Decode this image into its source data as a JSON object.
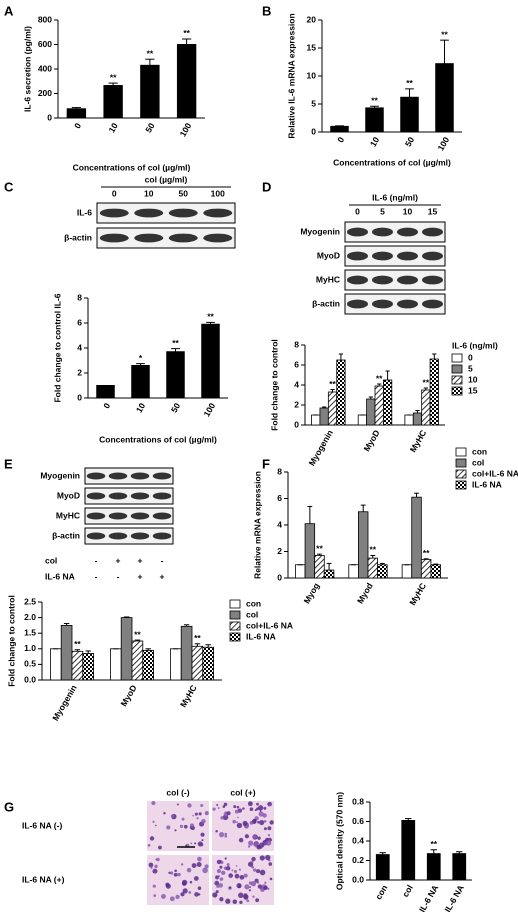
{
  "chart_data": [
    {
      "type": "bar",
      "panel": "A",
      "ylabel": "IL-6 secretion (pg/ml)",
      "xlabel": "Concentrations of col (µg/ml)",
      "categories": [
        "0",
        "10",
        "50",
        "100"
      ],
      "values": [
        75,
        265,
        430,
        600
      ],
      "errors": [
        10,
        20,
        50,
        45
      ],
      "significance": [
        null,
        "**",
        "**",
        "**"
      ],
      "color": "#000000",
      "ylim": [
        0,
        800
      ],
      "yticks": [
        0,
        200,
        400,
        600,
        800
      ]
    },
    {
      "type": "bar",
      "panel": "B",
      "ylabel": "Relative IL-6 mRNA expression",
      "xlabel": "Concentrations of col (µg/ml)",
      "categories": [
        "0",
        "10",
        "50",
        "100"
      ],
      "values": [
        1,
        4.3,
        6.2,
        12.2
      ],
      "errors": [
        0.1,
        0.3,
        1.5,
        4.2
      ],
      "significance": [
        null,
        "**",
        "**",
        "**"
      ],
      "color": "#000000",
      "ylim": [
        0,
        20
      ],
      "yticks": [
        0,
        5,
        10,
        15,
        20
      ]
    },
    {
      "type": "bar",
      "panel": "C",
      "ylabel": "Fold change to control IL-6",
      "xlabel": "Concentrations of col (µg/ml)",
      "categories": [
        "0",
        "10",
        "50",
        "100"
      ],
      "values": [
        1,
        2.6,
        3.7,
        5.9
      ],
      "errors": [
        0,
        0.15,
        0.25,
        0.15
      ],
      "significance": [
        null,
        "*",
        "**",
        "**"
      ],
      "color": "#000000",
      "ylim": [
        0,
        8
      ],
      "yticks": [
        0,
        2,
        4,
        6,
        8
      ]
    },
    {
      "type": "grouped-bar",
      "panel": "D",
      "ylabel": "Fold change to control",
      "legend_title": "IL-6 (ng/ml)",
      "categories": [
        "Myogenin",
        "MyoD",
        "MyHC"
      ],
      "ylim": [
        0,
        8
      ],
      "yticks": [
        0,
        2,
        4,
        6,
        8
      ],
      "series": [
        {
          "name": "0",
          "color": "#ffffff",
          "values": [
            1,
            1,
            1
          ],
          "errors": [
            0,
            0,
            0
          ],
          "significance": [
            null,
            null,
            null
          ]
        },
        {
          "name": "5",
          "color": "#808080",
          "values": [
            1.7,
            2.6,
            1.2
          ],
          "errors": [
            0.1,
            0.2,
            0.25
          ],
          "significance": [
            null,
            null,
            null
          ]
        },
        {
          "name": "10",
          "color": "#ffffff",
          "pattern": "hatch",
          "values": [
            3.3,
            3.9,
            3.5
          ],
          "errors": [
            0.25,
            0.2,
            0.2
          ],
          "significance": [
            "**",
            "**",
            "**"
          ]
        },
        {
          "name": "15",
          "color": "#ffffff",
          "pattern": "check",
          "values": [
            6.5,
            4.5,
            6.6
          ],
          "errors": [
            0.6,
            0.9,
            0.5
          ],
          "significance": [
            null,
            null,
            null
          ]
        }
      ]
    },
    {
      "type": "grouped-bar",
      "panel": "E",
      "ylabel": "Fold change to control",
      "categories": [
        "Myogenin",
        "MyoD",
        "MyHC"
      ],
      "ylim": [
        0,
        2.5
      ],
      "yticks": [
        {
          "value": 0,
          "label": "0.0"
        },
        0.5,
        {
          "value": 1,
          "label": "1.0"
        },
        1.5,
        {
          "value": 2,
          "label": "2.0"
        },
        2.5
      ],
      "series": [
        {
          "name": "con",
          "color": "#ffffff",
          "values": [
            1,
            1,
            1
          ],
          "errors": [
            0,
            0,
            0
          ],
          "significance": [
            null,
            null,
            null
          ]
        },
        {
          "name": "col",
          "color": "#808080",
          "values": [
            1.75,
            2.0,
            1.72
          ],
          "errors": [
            0.06,
            0.02,
            0.05
          ],
          "significance": [
            null,
            null,
            null
          ]
        },
        {
          "name": "col+IL-6 NA",
          "color": "#ffffff",
          "pattern": "hatch",
          "values": [
            0.92,
            1.25,
            1.08
          ],
          "errors": [
            0.05,
            0.03,
            0.08
          ],
          "significance": [
            "**",
            "**",
            "**"
          ]
        },
        {
          "name": "IL-6 NA",
          "color": "#ffffff",
          "pattern": "check",
          "values": [
            0.85,
            0.95,
            1.05
          ],
          "errors": [
            0.08,
            0.05,
            0.08
          ],
          "significance": [
            null,
            null,
            null
          ]
        }
      ]
    },
    {
      "type": "grouped-bar",
      "panel": "F",
      "ylabel": "Relative mRNA expression",
      "categories": [
        "Myog",
        "Myod",
        "MyHC"
      ],
      "ylim": [
        0,
        8
      ],
      "yticks": [
        0,
        2,
        4,
        6,
        8
      ],
      "series": [
        {
          "name": "con",
          "color": "#ffffff",
          "values": [
            1,
            1,
            1
          ],
          "errors": [
            0,
            0,
            0
          ],
          "significance": [
            null,
            null,
            null
          ]
        },
        {
          "name": "col",
          "color": "#808080",
          "values": [
            4.1,
            5.0,
            6.1
          ],
          "errors": [
            1.3,
            0.5,
            0.3
          ],
          "significance": [
            null,
            null,
            null
          ]
        },
        {
          "name": "col+IL-6 NA",
          "color": "#ffffff",
          "pattern": "hatch",
          "values": [
            1.7,
            1.5,
            1.4
          ],
          "errors": [
            0.1,
            0.2,
            0.05
          ],
          "significance": [
            "**",
            "**",
            "**"
          ]
        },
        {
          "name": "IL-6 NA",
          "color": "#ffffff",
          "pattern": "check",
          "values": [
            0.6,
            1.0,
            1.0
          ],
          "errors": [
            0.5,
            0.1,
            0.05
          ],
          "significance": [
            null,
            null,
            null
          ]
        }
      ]
    },
    {
      "type": "bar",
      "panel": "G",
      "ylabel": "Optical density (570 nm)",
      "categories": [
        "con",
        "col",
        "col+IL-6 NA",
        "IL-6 NA"
      ],
      "values": [
        0.26,
        0.61,
        0.27,
        0.27
      ],
      "errors": [
        0.02,
        0.02,
        0.04,
        0.02
      ],
      "significance": [
        null,
        null,
        "**",
        null
      ],
      "color": "#000000",
      "ylim": [
        0,
        0.8
      ],
      "yticks": [
        {
          "value": 0,
          "label": "0.0"
        },
        0.2,
        0.4,
        0.6,
        0.8
      ]
    }
  ],
  "blots": [
    {
      "header": "col (µg/ml)",
      "lanes": [
        "0",
        "10",
        "50",
        "100"
      ],
      "rows": [
        "IL-6",
        "β-actin"
      ]
    },
    {
      "header": "IL-6 (ng/ml)",
      "lanes": [
        "0",
        "5",
        "10",
        "15"
      ],
      "rows": [
        "Myogenin",
        "MyoD",
        "MyHC",
        "β-actin"
      ]
    },
    {
      "rows": [
        "Myogenin",
        "MyoD",
        "MyHC",
        "β-actin"
      ],
      "treatments": [
        {
          "name": "col",
          "signs": [
            "-",
            "+",
            "+",
            "-"
          ]
        },
        {
          "name": "IL-6 NA",
          "signs": [
            "-",
            "-",
            "+",
            "+"
          ]
        }
      ]
    }
  ],
  "micrographs": {
    "columns": [
      "col (-)",
      "col (+)"
    ],
    "rows": [
      "IL-6 NA (-)",
      "IL-6 NA (+)"
    ]
  }
}
